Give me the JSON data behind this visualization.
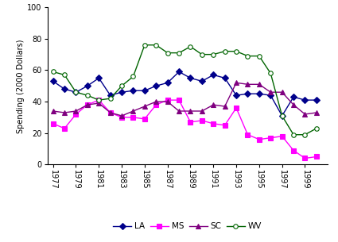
{
  "years": [
    1977,
    1978,
    1979,
    1980,
    1981,
    1982,
    1983,
    1984,
    1985,
    1986,
    1987,
    1988,
    1989,
    1990,
    1991,
    1992,
    1993,
    1994,
    1995,
    1996,
    1997,
    1998,
    1999,
    2000
  ],
  "LA": [
    53,
    48,
    46,
    50,
    55,
    44,
    46,
    47,
    47,
    50,
    52,
    59,
    55,
    53,
    57,
    55,
    44,
    45,
    45,
    44,
    31,
    43,
    41,
    41
  ],
  "MS": [
    26,
    23,
    32,
    38,
    41,
    33,
    30,
    30,
    29,
    38,
    41,
    41,
    27,
    28,
    26,
    25,
    36,
    19,
    16,
    17,
    18,
    9,
    4,
    5
  ],
  "SC": [
    34,
    33,
    34,
    38,
    39,
    33,
    31,
    34,
    37,
    40,
    40,
    34,
    34,
    34,
    38,
    37,
    52,
    51,
    51,
    46,
    46,
    38,
    32,
    33
  ],
  "WV": [
    59,
    57,
    46,
    44,
    41,
    42,
    50,
    56,
    76,
    76,
    71,
    71,
    75,
    70,
    70,
    72,
    72,
    69,
    69,
    58,
    31,
    19,
    19,
    23
  ],
  "colors": {
    "LA": "#00008B",
    "MS": "#FF00FF",
    "SC": "#800080",
    "WV": "#006400"
  },
  "markers": {
    "LA": "D",
    "MS": "s",
    "SC": "^",
    "WV": "o"
  },
  "marker_sizes": {
    "LA": 4,
    "MS": 4,
    "SC": 4,
    "WV": 4
  },
  "ylabel": "Spending (2000 Dollars)",
  "ylim": [
    0,
    100
  ],
  "yticks": [
    0,
    20,
    40,
    60,
    80,
    100
  ],
  "odd_years": [
    1977,
    1979,
    1981,
    1983,
    1985,
    1987,
    1989,
    1991,
    1993,
    1995,
    1997,
    1999
  ],
  "background_color": "#ffffff",
  "linewidth": 1.0,
  "legend_labels": [
    "LA",
    "MS",
    "SC",
    "WV"
  ],
  "figsize": [
    4.25,
    3.05
  ],
  "dpi": 100
}
